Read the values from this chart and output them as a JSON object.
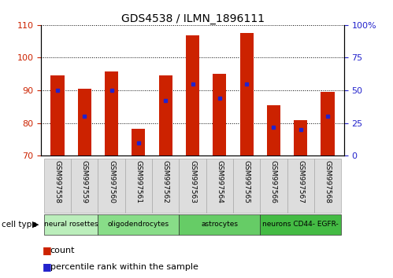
{
  "title": "GDS4538 / ILMN_1896111",
  "samples": [
    "GSM997558",
    "GSM997559",
    "GSM997560",
    "GSM997561",
    "GSM997562",
    "GSM997563",
    "GSM997564",
    "GSM997565",
    "GSM997566",
    "GSM997567",
    "GSM997568"
  ],
  "count_values": [
    94.5,
    90.5,
    95.8,
    78.2,
    94.5,
    106.8,
    95.0,
    107.5,
    85.5,
    80.8,
    89.5
  ],
  "percentile_values": [
    50,
    30,
    50,
    10,
    42,
    55,
    44,
    55,
    22,
    20,
    30
  ],
  "ylim_left": [
    70,
    110
  ],
  "ylim_right": [
    0,
    100
  ],
  "yticks_left": [
    70,
    80,
    90,
    100,
    110
  ],
  "yticks_right": [
    0,
    25,
    50,
    75,
    100
  ],
  "bar_color": "#cc2200",
  "percentile_color": "#2222cc",
  "axis_label_color_left": "#cc2200",
  "axis_label_color_right": "#2222cc",
  "cell_type_groups": [
    {
      "label": "neural rosettes",
      "start": 0,
      "end": 2,
      "color": "#bbeebb"
    },
    {
      "label": "oligodendrocytes",
      "start": 2,
      "end": 5,
      "color": "#88dd88"
    },
    {
      "label": "astrocytes",
      "start": 5,
      "end": 8,
      "color": "#66cc66"
    },
    {
      "label": "neurons CD44- EGFR-",
      "start": 8,
      "end": 11,
      "color": "#44bb44"
    }
  ],
  "legend_count_color": "#cc2200",
  "legend_percentile_color": "#2222cc",
  "bar_width": 0.5
}
